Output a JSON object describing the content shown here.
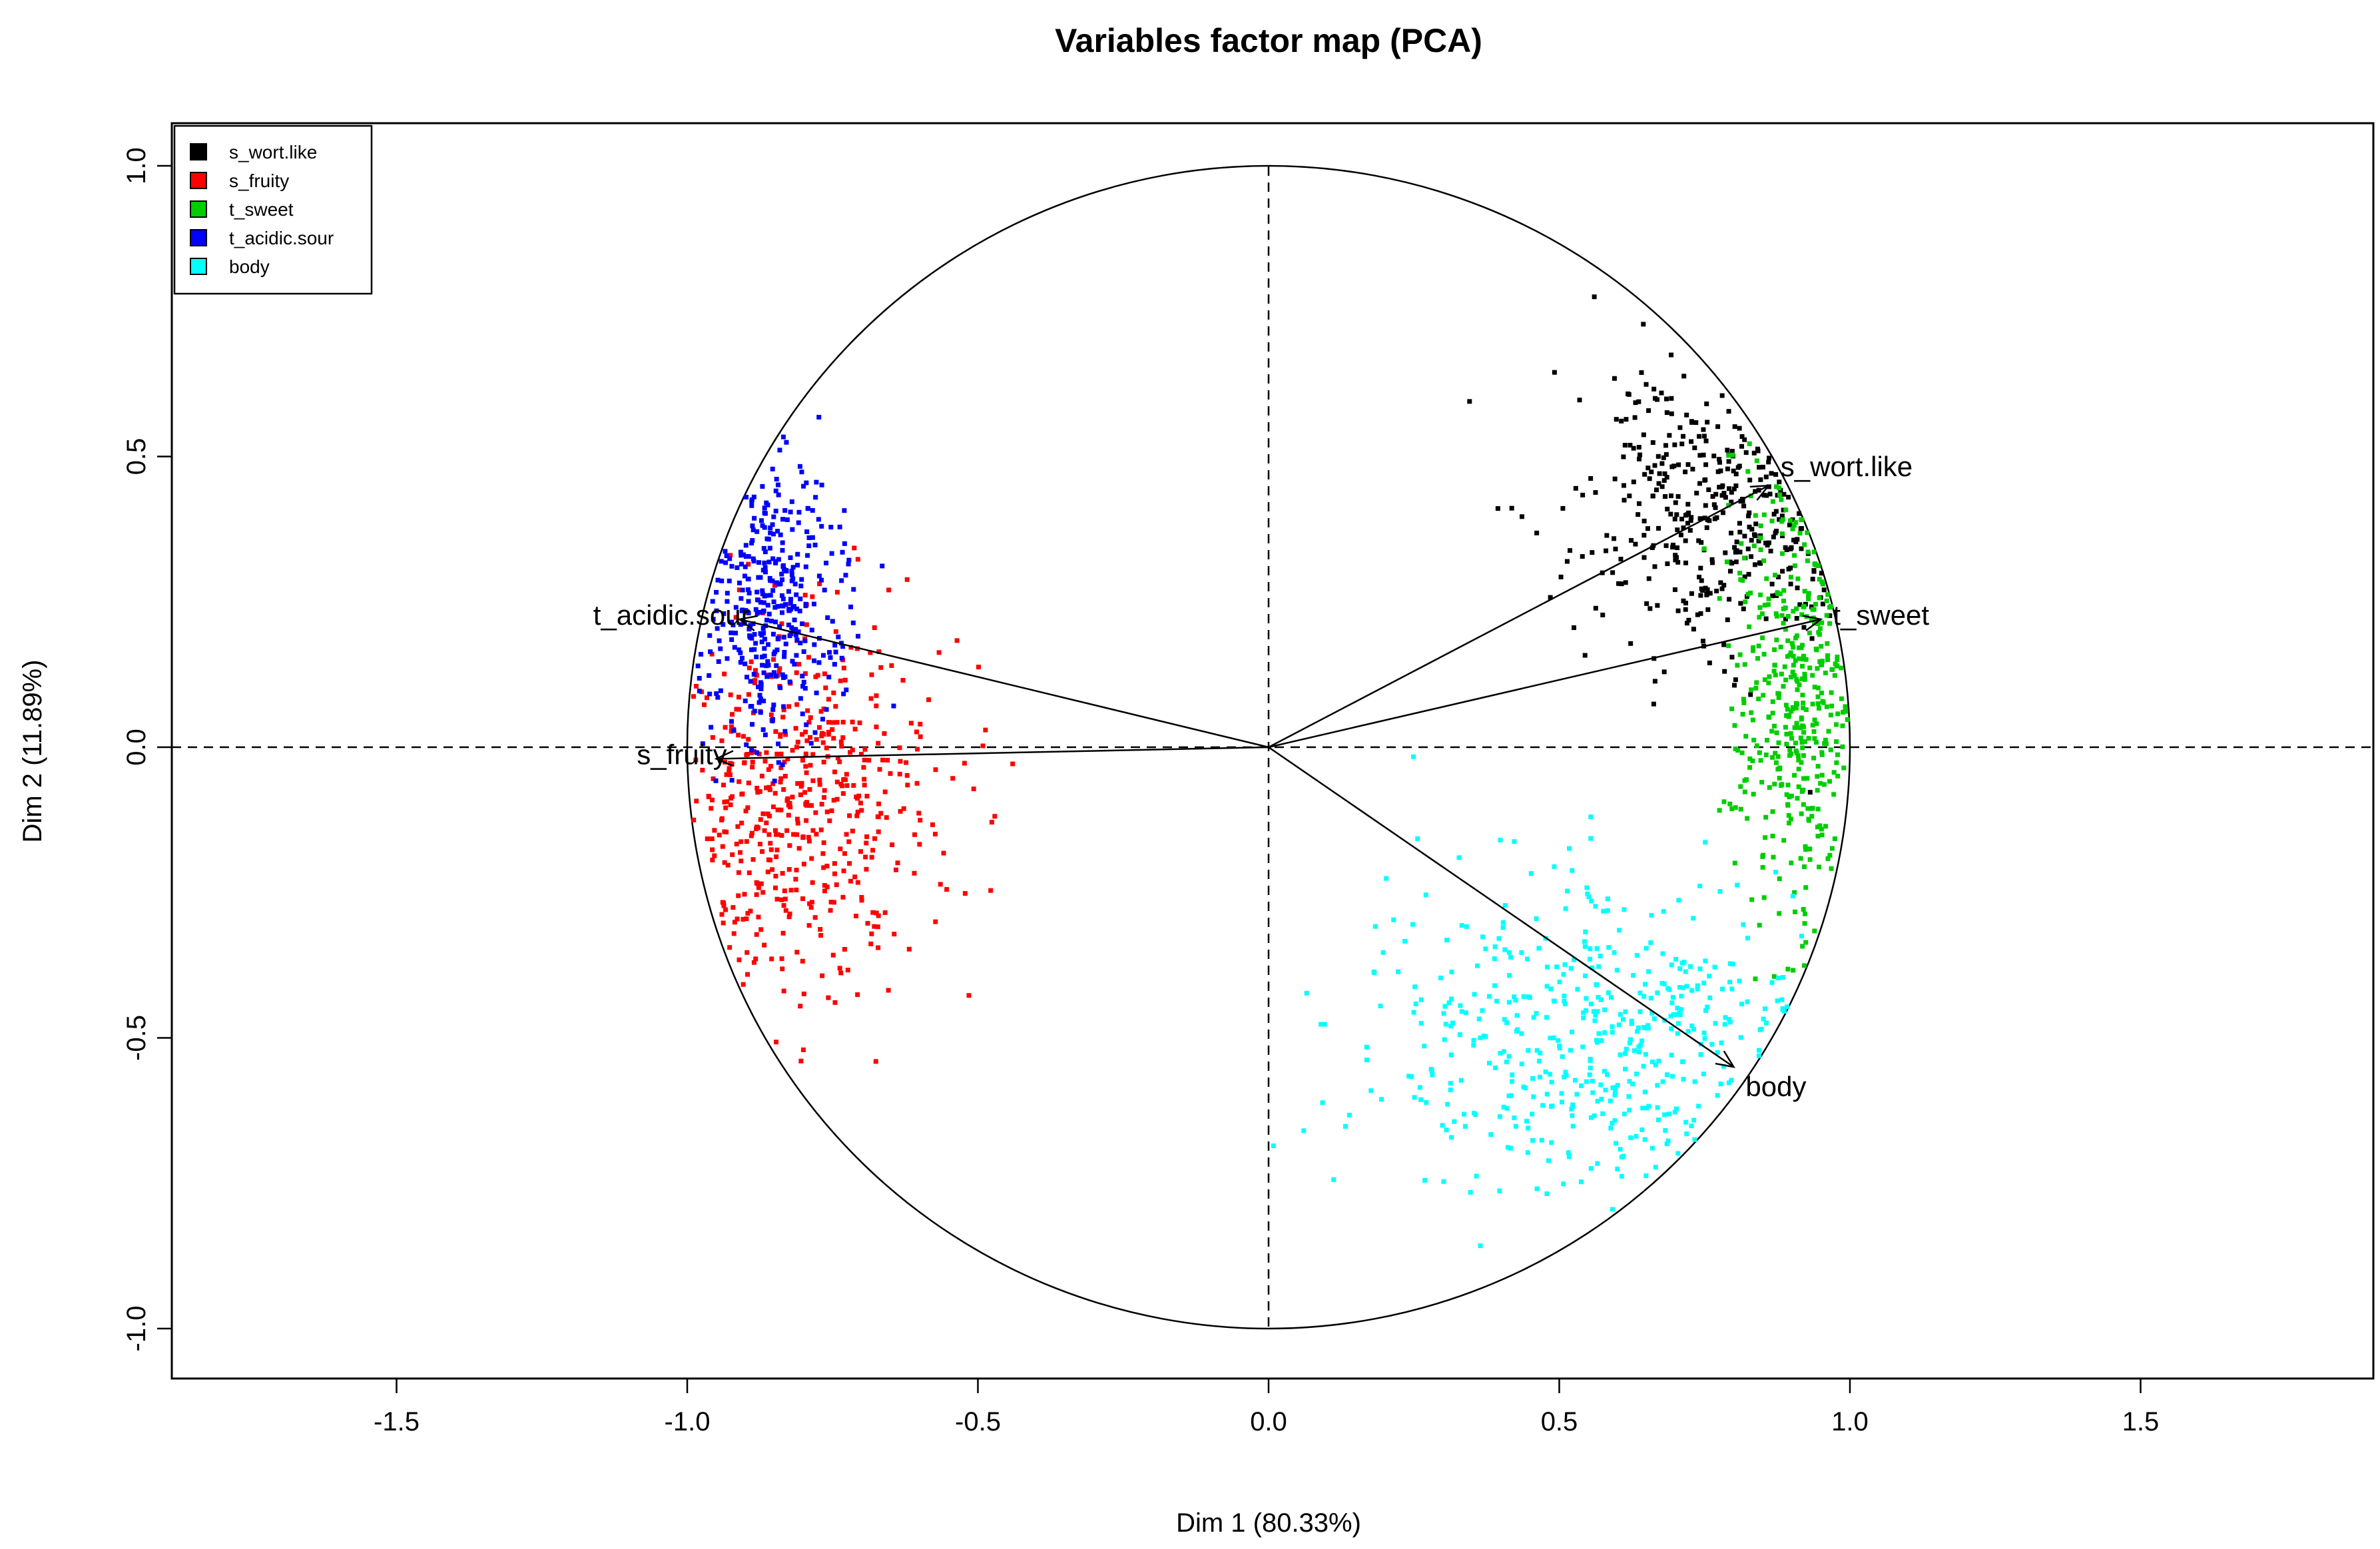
{
  "chart_data": {
    "type": "scatter",
    "title": "Variables factor map (PCA)",
    "xlabel": "Dim 1 (80.33%)",
    "ylabel": "Dim 2 (11.89%)",
    "xlim": [
      -1.9,
      1.9
    ],
    "ylim": [
      -1.08,
      1.08
    ],
    "xticks": [
      -1.5,
      -1.0,
      -0.5,
      0.0,
      0.5,
      1.0,
      1.5
    ],
    "yticks": [
      -1.0,
      -0.5,
      0.0,
      0.5,
      1.0
    ],
    "xtick_labels": [
      "-1.5",
      "-1.0",
      "-0.5",
      "0.0",
      "0.5",
      "1.0",
      "1.5"
    ],
    "ytick_labels": [
      "-1.0",
      "-0.5",
      "0.0",
      "0.5",
      "1.0"
    ],
    "grid": false,
    "correlation_circle_radius": 1.0,
    "reference_lines": {
      "x": 0,
      "y": 0,
      "style": "dashed"
    },
    "legend_position": "top-left",
    "vectors": [
      {
        "name": "s_wort.like",
        "x": 0.86,
        "y": 0.45
      },
      {
        "name": "t_sweet",
        "x": 0.95,
        "y": 0.22
      },
      {
        "name": "t_acidic.sour",
        "x": -0.91,
        "y": 0.22
      },
      {
        "name": "s_fruity",
        "x": -0.95,
        "y": -0.02
      },
      {
        "name": "body",
        "x": 0.8,
        "y": -0.55
      }
    ],
    "series": [
      {
        "name": "s_wort.like",
        "color": "#000000",
        "center": [
          0.8,
          0.42
        ],
        "spread": [
          0.14,
          0.14
        ],
        "count": 380
      },
      {
        "name": "s_fruity",
        "color": "#ff0000",
        "center": [
          -0.82,
          -0.1
        ],
        "spread": [
          0.13,
          0.17
        ],
        "count": 520
      },
      {
        "name": "t_sweet",
        "color": "#00cd00",
        "center": [
          0.92,
          0.12
        ],
        "spread": [
          0.06,
          0.2
        ],
        "count": 420
      },
      {
        "name": "t_acidic.sour",
        "color": "#0000ff",
        "center": [
          -0.86,
          0.24
        ],
        "spread": [
          0.07,
          0.12
        ],
        "count": 380
      },
      {
        "name": "body",
        "color": "#00ffff",
        "center": [
          0.6,
          -0.5
        ],
        "spread": [
          0.22,
          0.13
        ],
        "count": 480
      }
    ]
  }
}
